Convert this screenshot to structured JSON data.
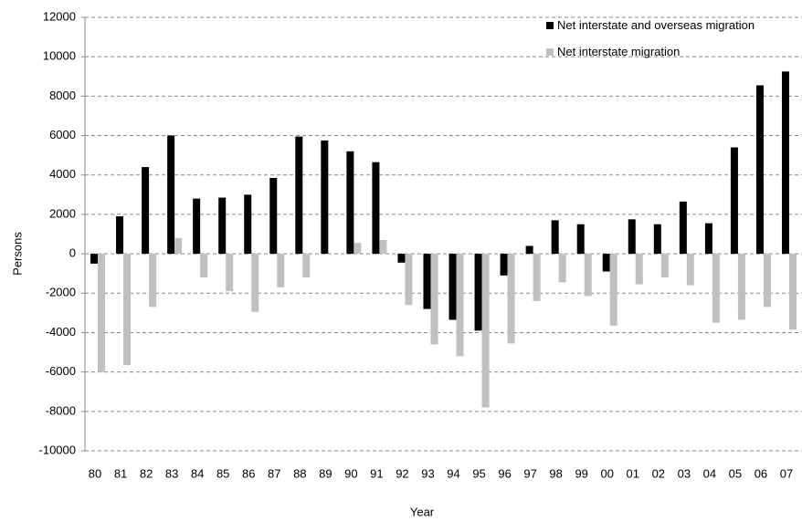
{
  "chart_data": {
    "type": "bar",
    "y_label": "Persons",
    "x_label": "Year",
    "categories": [
      "80",
      "81",
      "82",
      "83",
      "84",
      "85",
      "86",
      "87",
      "88",
      "89",
      "90",
      "91",
      "92",
      "93",
      "94",
      "95",
      "96",
      "97",
      "98",
      "99",
      "00",
      "01",
      "02",
      "03",
      "04",
      "05",
      "06",
      "07"
    ],
    "series": [
      {
        "name": "Net interstate and overseas migration",
        "color": "#000000",
        "values": [
          -500,
          1900,
          4400,
          6000,
          2800,
          2850,
          3000,
          3850,
          5950,
          5750,
          5200,
          4650,
          -450,
          -2800,
          -3350,
          -3900,
          -1100,
          400,
          1700,
          1500,
          -900,
          1750,
          1500,
          2650,
          1550,
          5400,
          8550,
          9250
        ]
      },
      {
        "name": "Net interstate migration",
        "color": "#c0c0c0",
        "values": [
          -6000,
          -5650,
          -2700,
          800,
          -1200,
          -1900,
          -2950,
          -1700,
          -1200,
          0,
          550,
          700,
          -2600,
          -4600,
          -5200,
          -7800,
          -4550,
          -2400,
          -1450,
          -2150,
          -3650,
          -1550,
          -1200,
          -1600,
          -3500,
          -3350,
          -2700,
          -3850
        ]
      }
    ],
    "ylim": [
      -10000,
      12000
    ],
    "yticks": [
      -10000,
      -8000,
      -6000,
      -4000,
      -2000,
      0,
      2000,
      4000,
      6000,
      8000,
      10000,
      12000
    ],
    "grid": true,
    "legend": "top-right"
  }
}
